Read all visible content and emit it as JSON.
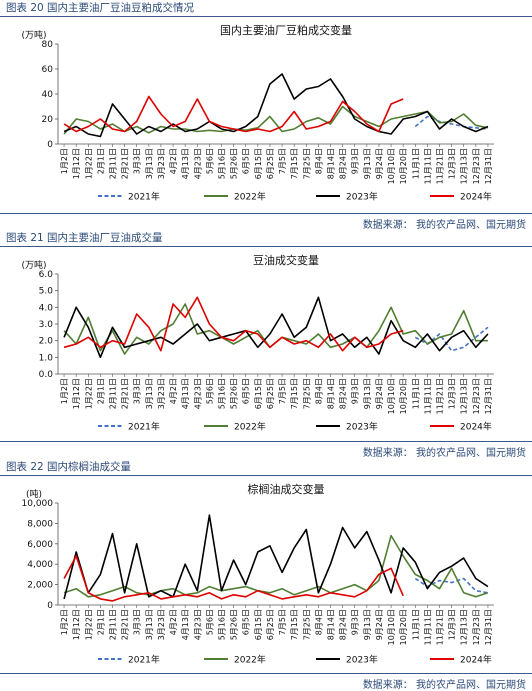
{
  "figures": [
    {
      "caption": "图表 20 国内主要油厂豆油豆粕成交情况",
      "source": "数据来源：  我的农产品网、国元期货"
    },
    {
      "caption": "图表 21 国内主要油厂豆油成交量",
      "source": "数据来源：  我的农产品网、国元期货"
    },
    {
      "caption": "图表 22 国内棕榈油成交量",
      "source": "数据来源：  我的农产品网、国元期货"
    }
  ],
  "chart_data": [
    {
      "type": "line",
      "title": "国内主要油厂豆粕成交变量",
      "unit": "(万吨)",
      "ylim": [
        0,
        80
      ],
      "yticks": [
        "0",
        "20",
        "40",
        "60",
        "80"
      ],
      "categories": [
        "1月2日",
        "1月12日",
        "1月22日",
        "2月1日",
        "2月11日",
        "2月21日",
        "3月3日",
        "3月13日",
        "3月23日",
        "4月2日",
        "4月13日",
        "4月23日",
        "5月6日",
        "5月16日",
        "5月26日",
        "6月5日",
        "6月15日",
        "6月25日",
        "7月5日",
        "7月15日",
        "7月25日",
        "8月4日",
        "8月14日",
        "8月24日",
        "9月3日",
        "9月13日",
        "9月24日",
        "10月10日",
        "10月20日",
        "11月1日",
        "11月11日",
        "11月21日",
        "12月3日",
        "12月13日",
        "12月23日",
        "12月31日"
      ],
      "series": [
        {
          "name": "2021年",
          "color": "#4472c4",
          "dash": true,
          "values": [
            null,
            null,
            null,
            null,
            null,
            null,
            null,
            null,
            null,
            null,
            null,
            null,
            null,
            null,
            null,
            null,
            null,
            null,
            null,
            null,
            null,
            null,
            null,
            null,
            null,
            null,
            null,
            null,
            null,
            14,
            22,
            18,
            16,
            14,
            13,
            12
          ]
        },
        {
          "name": "2022年",
          "color": "#507e32",
          "values": [
            8,
            20,
            18,
            12,
            16,
            10,
            14,
            9,
            14,
            12,
            12,
            10,
            11,
            10,
            12,
            11,
            13,
            22,
            10,
            12,
            18,
            21,
            16,
            30,
            22,
            18,
            14,
            20,
            22,
            24,
            26,
            17,
            18,
            24,
            15,
            13
          ]
        },
        {
          "name": "2023年",
          "color": "#000000",
          "values": [
            10,
            14,
            8,
            6,
            32,
            20,
            8,
            14,
            10,
            16,
            10,
            12,
            18,
            12,
            10,
            14,
            22,
            48,
            56,
            36,
            44,
            46,
            52,
            38,
            20,
            14,
            10,
            8,
            20,
            22,
            26,
            12,
            20,
            14,
            10,
            14
          ]
        },
        {
          "name": "2024年",
          "color": "#e00000",
          "values": [
            16,
            10,
            14,
            20,
            12,
            10,
            18,
            38,
            24,
            14,
            18,
            36,
            18,
            14,
            12,
            10,
            12,
            10,
            14,
            26,
            12,
            14,
            18,
            34,
            26,
            16,
            10,
            32,
            36,
            null,
            null,
            null,
            null,
            null,
            null,
            null
          ]
        }
      ]
    },
    {
      "type": "line",
      "title": "豆油成交变量",
      "unit": "(万吨)",
      "ylim": [
        0,
        6
      ],
      "yticks": [
        "0.0",
        "1.0",
        "2.0",
        "3.0",
        "4.0",
        "5.0",
        "6.0"
      ],
      "categories": [
        "1月2日",
        "1月12日",
        "1月22日",
        "2月1日",
        "2月11日",
        "2月21日",
        "3月3日",
        "3月13日",
        "3月23日",
        "4月2日",
        "4月13日",
        "4月23日",
        "5月6日",
        "5月16日",
        "5月26日",
        "6月5日",
        "6月15日",
        "6月25日",
        "7月5日",
        "7月15日",
        "7月25日",
        "8月4日",
        "8月14日",
        "8月24日",
        "9月3日",
        "9月13日",
        "9月24日",
        "10月10日",
        "10月20日",
        "11月1日",
        "11月11日",
        "11月21日",
        "12月3日",
        "12月13日",
        "12月23日",
        "12月31日"
      ],
      "series": [
        {
          "name": "2021年",
          "color": "#4472c4",
          "dash": true,
          "values": [
            null,
            null,
            null,
            null,
            null,
            null,
            null,
            null,
            null,
            null,
            null,
            null,
            null,
            null,
            null,
            null,
            null,
            null,
            null,
            null,
            null,
            null,
            null,
            null,
            null,
            null,
            null,
            null,
            null,
            2.2,
            1.8,
            2.4,
            1.4,
            1.6,
            2.2,
            2.8
          ]
        },
        {
          "name": "2022年",
          "color": "#507e32",
          "values": [
            2.6,
            1.8,
            3.4,
            1.4,
            2.6,
            1.2,
            2.2,
            1.8,
            2.6,
            3.0,
            4.2,
            2.4,
            2.6,
            2.2,
            1.8,
            2.2,
            2.6,
            1.6,
            2.2,
            2.0,
            1.8,
            2.4,
            1.6,
            1.8,
            2.2,
            1.6,
            2.6,
            4.0,
            2.4,
            2.6,
            1.8,
            2.2,
            2.4,
            3.8,
            2.0,
            2.0
          ]
        },
        {
          "name": "2023年",
          "color": "#000000",
          "values": [
            2.2,
            4.0,
            2.8,
            1.0,
            2.8,
            1.6,
            1.8,
            2.0,
            2.2,
            1.8,
            2.4,
            3.0,
            2.0,
            2.2,
            2.4,
            2.6,
            1.6,
            2.4,
            3.6,
            2.2,
            2.8,
            4.6,
            2.0,
            2.4,
            1.6,
            2.2,
            1.2,
            3.2,
            2.0,
            1.6,
            2.4,
            1.4,
            2.2,
            2.6,
            1.6,
            2.4
          ]
        },
        {
          "name": "2024年",
          "color": "#e00000",
          "values": [
            1.6,
            1.8,
            2.2,
            1.6,
            2.0,
            1.8,
            3.6,
            2.8,
            1.4,
            4.2,
            3.4,
            4.6,
            3.0,
            2.2,
            2.0,
            2.6,
            2.4,
            1.6,
            2.2,
            1.8,
            2.0,
            1.6,
            2.4,
            1.4,
            2.2,
            1.6,
            1.8,
            2.4,
            2.6,
            null,
            null,
            null,
            null,
            null,
            null,
            null
          ]
        }
      ]
    },
    {
      "type": "line",
      "title": "棕榈油成交变量",
      "unit": "(吨)",
      "ylim": [
        0,
        10000
      ],
      "yticks": [
        "0",
        "2,000",
        "4,000",
        "6,000",
        "8,000",
        "10,000"
      ],
      "categories": [
        "1月2日",
        "1月12日",
        "1月22日",
        "2月1日",
        "2月11日",
        "2月21日",
        "3月3日",
        "3月13日",
        "3月23日",
        "4月2日",
        "4月13日",
        "4月23日",
        "5月6日",
        "5月16日",
        "5月26日",
        "6月5日",
        "6月15日",
        "6月25日",
        "7月5日",
        "7月15日",
        "7月25日",
        "8月4日",
        "8月14日",
        "8月24日",
        "9月3日",
        "9月13日",
        "9月24日",
        "10月10日",
        "10月20日",
        "11月1日",
        "11月11日",
        "11月21日",
        "12月3日",
        "12月13日",
        "12月23日",
        "12月31日"
      ],
      "series": [
        {
          "name": "2021年",
          "color": "#4472c4",
          "dash": true,
          "values": [
            null,
            null,
            null,
            null,
            null,
            null,
            null,
            null,
            null,
            null,
            null,
            null,
            null,
            null,
            null,
            null,
            null,
            null,
            null,
            null,
            null,
            null,
            null,
            null,
            null,
            null,
            null,
            null,
            null,
            2600,
            1800,
            2400,
            2200,
            2600,
            1400,
            1200
          ]
        },
        {
          "name": "2022年",
          "color": "#507e32",
          "values": [
            1200,
            1600,
            800,
            1000,
            1400,
            1800,
            1200,
            1000,
            1400,
            1600,
            1000,
            1200,
            1800,
            1400,
            1600,
            1800,
            1400,
            1200,
            1600,
            1000,
            1400,
            1800,
            1200,
            1600,
            2000,
            1400,
            2400,
            6800,
            4800,
            3000,
            2400,
            1600,
            3600,
            1200,
            800,
            1200
          ]
        },
        {
          "name": "2023年",
          "color": "#000000",
          "values": [
            600,
            5200,
            1200,
            3000,
            7000,
            1200,
            6000,
            800,
            1400,
            800,
            4000,
            1400,
            8800,
            1400,
            4400,
            2000,
            5200,
            5800,
            3200,
            5600,
            7400,
            1200,
            4000,
            7600,
            5600,
            7200,
            4400,
            1200,
            5600,
            4200,
            1600,
            3200,
            3800,
            4600,
            2600,
            1800
          ]
        },
        {
          "name": "2024年",
          "color": "#e00000",
          "values": [
            2600,
            4800,
            1200,
            600,
            400,
            800,
            1000,
            1200,
            600,
            800,
            1000,
            800,
            1200,
            600,
            1000,
            800,
            1400,
            1000,
            600,
            800,
            1000,
            800,
            1200,
            1000,
            800,
            1400,
            3000,
            3600,
            900,
            null,
            null,
            null,
            null,
            null,
            null,
            null
          ]
        }
      ]
    }
  ]
}
